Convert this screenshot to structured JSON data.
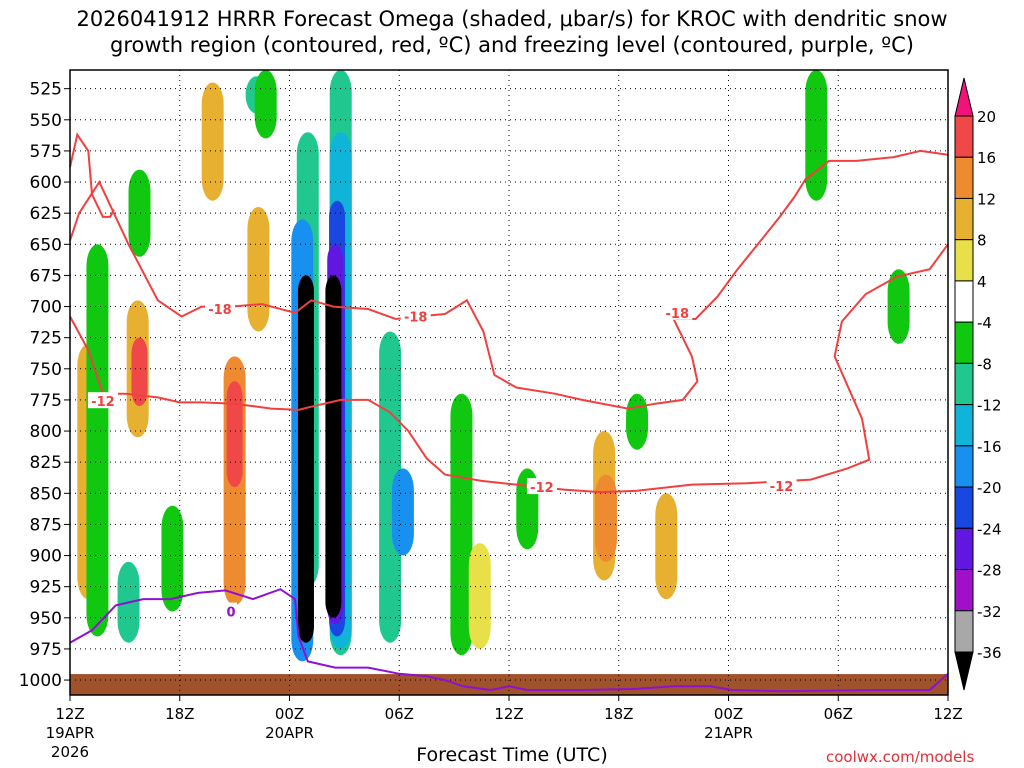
{
  "chart_data": {
    "type": "heatmap",
    "title": "2026041912 HRRR Forecast Omega (shaded, μbar/s) for KROC with dendritic snow\ngrowth region (contoured, red, ºC) and freezing level (contoured, purple, ºC)",
    "xlabel": "Forecast Time (UTC)",
    "credit": "coolwx.com/models",
    "x_hours_range": [
      0,
      48
    ],
    "y_range_mb": [
      510,
      1012
    ],
    "y_ticks": [
      "525",
      "550",
      "575",
      "600",
      "625",
      "650",
      "675",
      "700",
      "725",
      "750",
      "775",
      "800",
      "825",
      "850",
      "875",
      "900",
      "925",
      "950",
      "975",
      "1000"
    ],
    "x_ticks": [
      {
        "hour": 0,
        "label": "12Z",
        "date": "19APR",
        "year": "2026"
      },
      {
        "hour": 6,
        "label": "18Z",
        "date": "",
        "year": ""
      },
      {
        "hour": 12,
        "label": "00Z",
        "date": "20APR",
        "year": ""
      },
      {
        "hour": 18,
        "label": "06Z",
        "date": "",
        "year": ""
      },
      {
        "hour": 24,
        "label": "12Z",
        "date": "",
        "year": ""
      },
      {
        "hour": 30,
        "label": "18Z",
        "date": "",
        "year": ""
      },
      {
        "hour": 36,
        "label": "00Z",
        "date": "21APR",
        "year": ""
      },
      {
        "hour": 42,
        "label": "06Z",
        "date": "",
        "year": ""
      },
      {
        "hour": 48,
        "label": "12Z",
        "date": "",
        "year": ""
      }
    ],
    "colorbar": {
      "bins": [
        {
          "from": 20,
          "to": 24,
          "color": "#f0147a"
        },
        {
          "from": 16,
          "to": 20,
          "color": "#f04848"
        },
        {
          "from": 12,
          "to": 16,
          "color": "#ee8a30"
        },
        {
          "from": 8,
          "to": 12,
          "color": "#e8b030"
        },
        {
          "from": 4,
          "to": 8,
          "color": "#e8e048"
        },
        {
          "from": -4,
          "to": 4,
          "color": "#ffffff"
        },
        {
          "from": -8,
          "to": -4,
          "color": "#10c810"
        },
        {
          "from": -12,
          "to": -8,
          "color": "#20c890"
        },
        {
          "from": -16,
          "to": -12,
          "color": "#10b4d8"
        },
        {
          "from": -20,
          "to": -16,
          "color": "#1890f0"
        },
        {
          "from": -24,
          "to": -20,
          "color": "#1848e0"
        },
        {
          "from": -28,
          "to": -24,
          "color": "#6018e0"
        },
        {
          "from": -32,
          "to": -28,
          "color": "#a010c8"
        },
        {
          "from": -36,
          "to": -32,
          "color": "#a8a8a8"
        },
        {
          "from": -40,
          "to": -36,
          "color": "#000000"
        }
      ],
      "labels": [
        "20",
        "16",
        "12",
        "8",
        "4",
        "-4",
        "-8",
        "-12",
        "-16",
        "-20",
        "-24",
        "-28",
        "-32",
        "-36"
      ]
    },
    "shaded_regions": [
      {
        "hour": 0.9,
        "p_top": 630,
        "p_bot": 955,
        "omega": 4
      },
      {
        "hour": 1.0,
        "p_top": 730,
        "p_bot": 935,
        "omega": 12
      },
      {
        "hour": 1.5,
        "p_top": 650,
        "p_bot": 965,
        "omega": -6
      },
      {
        "hour": 3.6,
        "p_top": 640,
        "p_bot": 830,
        "omega": 4
      },
      {
        "hour": 3.7,
        "p_top": 695,
        "p_bot": 805,
        "omega": 12
      },
      {
        "hour": 3.8,
        "p_top": 725,
        "p_bot": 780,
        "omega": 20
      },
      {
        "hour": 3.2,
        "p_top": 905,
        "p_bot": 970,
        "omega": -10
      },
      {
        "hour": 3.8,
        "p_top": 590,
        "p_bot": 660,
        "omega": -6
      },
      {
        "hour": 5.2,
        "p_top": 510,
        "p_bot": 700,
        "omega": 4
      },
      {
        "hour": 5.6,
        "p_top": 860,
        "p_bot": 945,
        "omega": -6
      },
      {
        "hour": 7.8,
        "p_top": 520,
        "p_bot": 615,
        "omega": 12
      },
      {
        "hour": 9.0,
        "p_top": 705,
        "p_bot": 970,
        "omega": 4
      },
      {
        "hour": 9.0,
        "p_top": 740,
        "p_bot": 940,
        "omega": 14
      },
      {
        "hour": 9.0,
        "p_top": 760,
        "p_bot": 845,
        "omega": 20
      },
      {
        "hour": 10.3,
        "p_top": 620,
        "p_bot": 720,
        "omega": 10
      },
      {
        "hour": 10.2,
        "p_top": 515,
        "p_bot": 545,
        "omega": -10
      },
      {
        "hour": 10.7,
        "p_top": 510,
        "p_bot": 565,
        "omega": -6
      },
      {
        "hour": 13.0,
        "p_top": 560,
        "p_bot": 925,
        "omega": -8
      },
      {
        "hour": 12.7,
        "p_top": 630,
        "p_bot": 985,
        "omega": -18
      },
      {
        "hour": 12.9,
        "p_top": 675,
        "p_bot": 970,
        "omega": -38
      },
      {
        "hour": 14.8,
        "p_top": 510,
        "p_bot": 980,
        "omega": -8
      },
      {
        "hour": 14.8,
        "p_top": 560,
        "p_bot": 975,
        "omega": -12
      },
      {
        "hour": 14.6,
        "p_top": 615,
        "p_bot": 965,
        "omega": -20
      },
      {
        "hour": 14.5,
        "p_top": 650,
        "p_bot": 955,
        "omega": -26
      },
      {
        "hour": 14.4,
        "p_top": 675,
        "p_bot": 950,
        "omega": -38
      },
      {
        "hour": 17.5,
        "p_top": 720,
        "p_bot": 970,
        "omega": -8
      },
      {
        "hour": 18.2,
        "p_top": 830,
        "p_bot": 900,
        "omega": -18
      },
      {
        "hour": 19.9,
        "p_top": 510,
        "p_bot": 655,
        "omega": 4
      },
      {
        "hour": 21.4,
        "p_top": 770,
        "p_bot": 980,
        "omega": -6
      },
      {
        "hour": 22.4,
        "p_top": 890,
        "p_bot": 975,
        "omega": 8
      },
      {
        "hour": 25.0,
        "p_top": 830,
        "p_bot": 895,
        "omega": -6
      },
      {
        "hour": 26.7,
        "p_top": 800,
        "p_bot": 980,
        "omega": 4
      },
      {
        "hour": 29.0,
        "p_top": 765,
        "p_bot": 965,
        "omega": 4
      },
      {
        "hour": 29.2,
        "p_top": 800,
        "p_bot": 920,
        "omega": 10
      },
      {
        "hour": 29.3,
        "p_top": 835,
        "p_bot": 905,
        "omega": 14
      },
      {
        "hour": 32.4,
        "p_top": 770,
        "p_bot": 960,
        "omega": 4
      },
      {
        "hour": 32.6,
        "p_top": 850,
        "p_bot": 935,
        "omega": 12
      },
      {
        "hour": 31.0,
        "p_top": 770,
        "p_bot": 815,
        "omega": -6
      },
      {
        "hour": 31.4,
        "p_top": 590,
        "p_bot": 635,
        "omega": 4
      },
      {
        "hour": 35.0,
        "p_top": 510,
        "p_bot": 685,
        "omega": 4
      },
      {
        "hour": 36.5,
        "p_top": 850,
        "p_bot": 970,
        "omega": 4
      },
      {
        "hour": 40.8,
        "p_top": 510,
        "p_bot": 615,
        "omega": -6
      },
      {
        "hour": 43.2,
        "p_top": 880,
        "p_bot": 900,
        "omega": 4
      },
      {
        "hour": 44.8,
        "p_top": 870,
        "p_bot": 905,
        "omega": 4
      },
      {
        "hour": 46.6,
        "p_top": 840,
        "p_bot": 945,
        "omega": 4
      },
      {
        "hour": 45.3,
        "p_top": 670,
        "p_bot": 730,
        "omega": -6
      }
    ],
    "ground_mb": 1000,
    "dendritic_contours": [
      {
        "label": "-18",
        "label_at": [
          8.2,
          702
        ],
        "points": [
          [
            0,
            647
          ],
          [
            0.5,
            625
          ],
          [
            1.6,
            600
          ],
          [
            3.2,
            650
          ],
          [
            4.8,
            695
          ],
          [
            6.1,
            708
          ],
          [
            7.2,
            700
          ],
          [
            8.8,
            700
          ],
          [
            10.5,
            698
          ],
          [
            12.3,
            705
          ],
          [
            13.2,
            695
          ],
          [
            14.4,
            700
          ],
          [
            16.3,
            702
          ],
          [
            17.8,
            710
          ],
          [
            19.0,
            708
          ],
          [
            20.5,
            706
          ],
          [
            21.7,
            695
          ],
          [
            22.6,
            720
          ],
          [
            23.2,
            755
          ],
          [
            24.4,
            765
          ],
          [
            26.5,
            770
          ],
          [
            28.0,
            775
          ],
          [
            30.5,
            782
          ],
          [
            32.0,
            778
          ],
          [
            33.5,
            775
          ],
          [
            34.3,
            760
          ],
          [
            34.0,
            740
          ],
          [
            33.0,
            710
          ],
          [
            34.2,
            710
          ],
          [
            35.4,
            692
          ],
          [
            36.5,
            670
          ],
          [
            37.6,
            650
          ],
          [
            38.8,
            628
          ],
          [
            39.6,
            612
          ],
          [
            40.2,
            598
          ],
          [
            41.5,
            583
          ],
          [
            43.0,
            583
          ],
          [
            45.0,
            580
          ],
          [
            46.5,
            575
          ],
          [
            48,
            578
          ]
        ]
      },
      {
        "label": "-12",
        "label_at": [
          1.5,
          773
        ],
        "points": [
          [
            0,
            708
          ],
          [
            1.0,
            735
          ],
          [
            1.8,
            770
          ],
          [
            3.0,
            770
          ],
          [
            4.8,
            773
          ],
          [
            6.0,
            777
          ],
          [
            7.2,
            777
          ],
          [
            9.0,
            778
          ],
          [
            11.0,
            782
          ],
          [
            12.5,
            783
          ],
          [
            13.3,
            780
          ],
          [
            14.8,
            775
          ],
          [
            16.3,
            775
          ],
          [
            17.5,
            785
          ],
          [
            18.5,
            800
          ],
          [
            19.5,
            822
          ],
          [
            20.5,
            835
          ],
          [
            22.5,
            840
          ],
          [
            25.0,
            844
          ],
          [
            27.0,
            847
          ],
          [
            29.0,
            849
          ],
          [
            31.0,
            848
          ],
          [
            34.0,
            843
          ],
          [
            37.0,
            842
          ],
          [
            40.5,
            839
          ],
          [
            42.5,
            830
          ],
          [
            43.7,
            823
          ],
          [
            43.3,
            790
          ],
          [
            42.4,
            760
          ],
          [
            41.8,
            740
          ],
          [
            42.2,
            712
          ],
          [
            43.5,
            690
          ],
          [
            45.2,
            676
          ],
          [
            47.0,
            670
          ],
          [
            48,
            650
          ]
        ]
      },
      {
        "label": "-12_upper",
        "label_at": null,
        "points": [
          [
            0,
            588
          ],
          [
            0.4,
            562
          ],
          [
            1.0,
            575
          ],
          [
            1.2,
            610
          ],
          [
            1.8,
            628
          ],
          [
            2.2,
            628
          ],
          [
            2.4,
            622
          ]
        ]
      }
    ],
    "contour_labels": [
      "-18",
      "-18",
      "-18",
      "-12",
      "-12",
      "-12"
    ],
    "contour_label_positions": [
      [
        8.2,
        702
      ],
      [
        18.9,
        708
      ],
      [
        33.2,
        705
      ],
      [
        1.8,
        776
      ],
      [
        25.8,
        845
      ],
      [
        38.9,
        844
      ]
    ],
    "freezing_contours": [
      {
        "label": "0",
        "label_at": [
          8.8,
          945
        ],
        "points": [
          [
            0,
            970
          ],
          [
            1.2,
            960
          ],
          [
            2.5,
            940
          ],
          [
            4.0,
            935
          ],
          [
            5.5,
            935
          ],
          [
            7.0,
            930
          ],
          [
            8.5,
            928
          ],
          [
            10.0,
            935
          ],
          [
            11.5,
            927
          ],
          [
            12.3,
            935
          ],
          [
            12.5,
            965
          ],
          [
            13.0,
            985
          ],
          [
            14.5,
            990
          ],
          [
            16.3,
            990
          ],
          [
            18.0,
            995
          ],
          [
            19.5,
            997
          ],
          [
            20.5,
            1000
          ],
          [
            21.5,
            1005
          ],
          [
            23.0,
            1008
          ],
          [
            24.0,
            1005
          ],
          [
            25.0,
            1008
          ],
          [
            28.0,
            1008
          ],
          [
            31.0,
            1007
          ],
          [
            33.0,
            1005
          ],
          [
            35.0,
            1005
          ],
          [
            36.2,
            1008
          ],
          [
            39.0,
            1009
          ],
          [
            44.0,
            1008
          ],
          [
            47.0,
            1008
          ],
          [
            48,
            995
          ]
        ]
      }
    ]
  }
}
